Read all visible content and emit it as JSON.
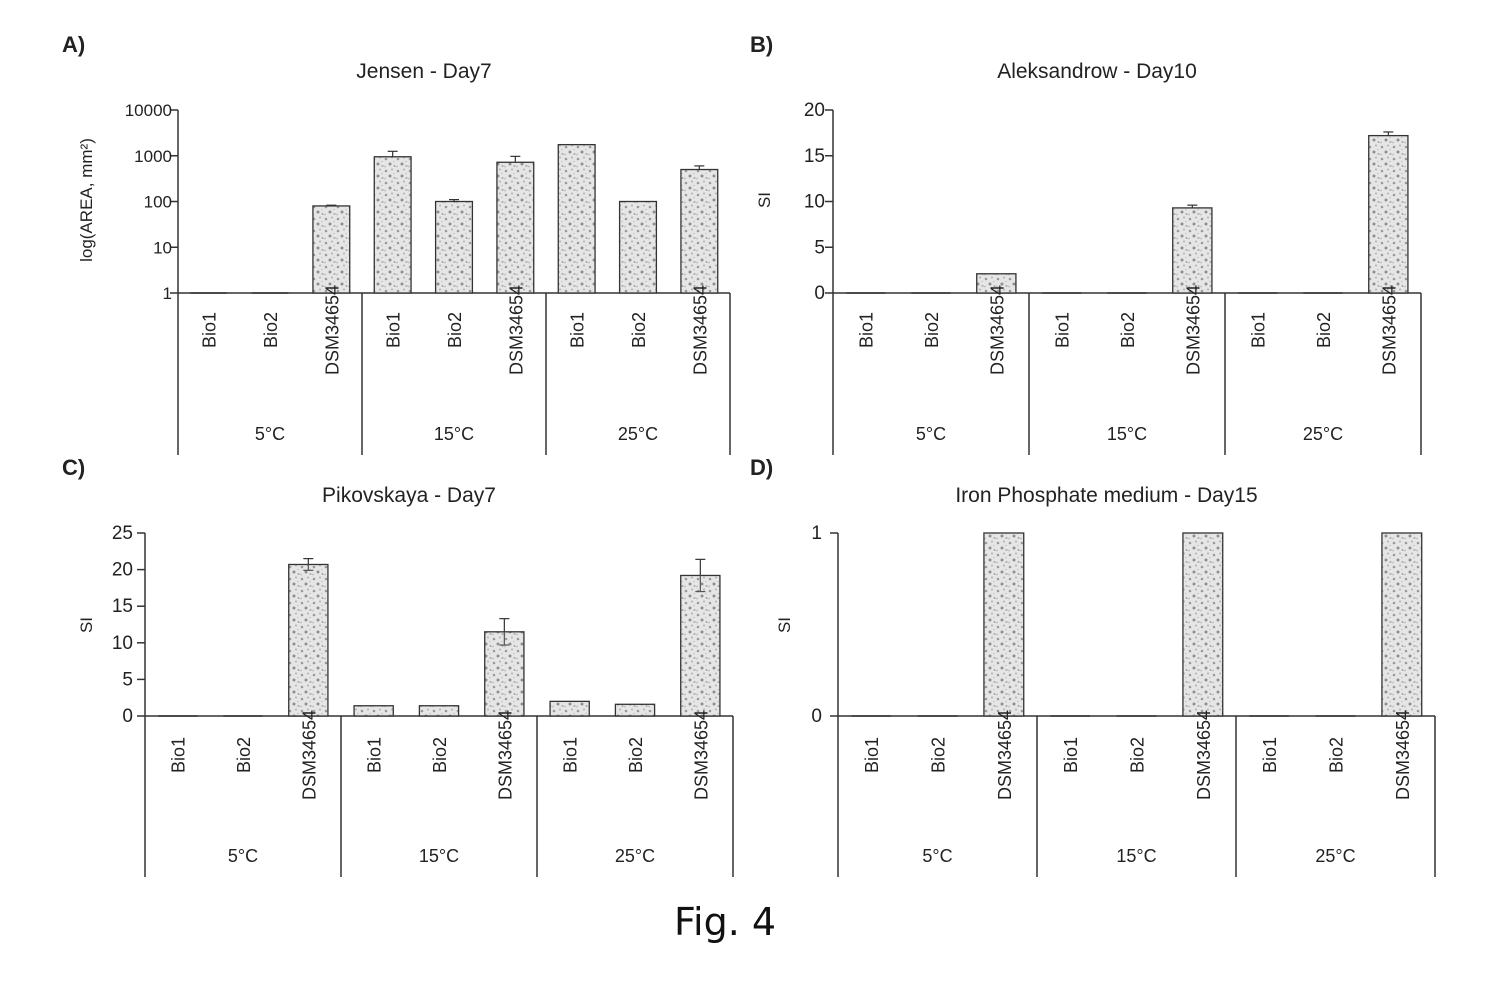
{
  "figure": {
    "caption": "Fig. 4"
  },
  "chart_data": [
    {
      "panel_label": "A)",
      "type": "bar",
      "title": "Jensen - Day7",
      "ylabel": "log(AREA, mm²)",
      "y_scale": "log",
      "ylim": [
        1,
        10000
      ],
      "yticks": [
        "1",
        "10",
        "100",
        "1000",
        "10000"
      ],
      "groups": [
        "5°C",
        "15°C",
        "25°C"
      ],
      "categories": [
        "Bio1",
        "Bio2",
        "DSM34654"
      ],
      "values": [
        [
          1,
          1,
          80
        ],
        [
          950,
          100,
          720
        ],
        [
          1750,
          100,
          500
        ]
      ],
      "errors": [
        [
          0,
          0,
          3
        ],
        [
          300,
          10,
          250
        ],
        [
          0,
          0,
          100
        ]
      ],
      "error_bars": "top"
    },
    {
      "panel_label": "B)",
      "type": "bar",
      "title": "Aleksandrow - Day10",
      "ylabel": "SI",
      "y_scale": "linear",
      "ylim": [
        0,
        20
      ],
      "yticks": [
        "0",
        "5",
        "10",
        "15",
        "20"
      ],
      "groups": [
        "5°C",
        "15°C",
        "25°C"
      ],
      "categories": [
        "Bio1",
        "Bio2",
        "DSM34654"
      ],
      "values": [
        [
          0,
          0,
          2.1
        ],
        [
          0,
          0,
          9.3
        ],
        [
          0,
          0,
          17.2
        ]
      ],
      "errors": [
        [
          0,
          0,
          0
        ],
        [
          0,
          0,
          0.3
        ],
        [
          0,
          0,
          0.4
        ]
      ],
      "error_bars": "top"
    },
    {
      "panel_label": "C)",
      "type": "bar",
      "title": "Pikovskaya - Day7",
      "ylabel": "SI",
      "y_scale": "linear",
      "ylim": [
        0,
        25
      ],
      "yticks": [
        "0",
        "5",
        "10",
        "15",
        "20",
        "25"
      ],
      "groups": [
        "5°C",
        "15°C",
        "25°C"
      ],
      "categories": [
        "Bio1",
        "Bio2",
        "DSM34654"
      ],
      "values": [
        [
          0,
          0,
          20.7
        ],
        [
          1.4,
          1.4,
          11.5
        ],
        [
          2.0,
          1.6,
          19.2
        ]
      ],
      "errors": [
        [
          0,
          0,
          0.8
        ],
        [
          0,
          0,
          1.8
        ],
        [
          0,
          0,
          2.2
        ]
      ],
      "error_bars": "both"
    },
    {
      "panel_label": "D)",
      "type": "bar",
      "title": "Iron Phosphate medium - Day15",
      "ylabel": "SI",
      "y_scale": "linear",
      "ylim": [
        0,
        1
      ],
      "yticks": [
        "0",
        "1"
      ],
      "groups": [
        "5°C",
        "15°C",
        "25°C"
      ],
      "categories": [
        "Bio1",
        "Bio2",
        "DSM34654"
      ],
      "values": [
        [
          0,
          0,
          1
        ],
        [
          0,
          0,
          1
        ],
        [
          0,
          0,
          1
        ]
      ],
      "errors": [
        [
          0,
          0,
          0
        ],
        [
          0,
          0,
          0
        ],
        [
          0,
          0,
          0
        ]
      ],
      "error_bars": "top"
    }
  ]
}
